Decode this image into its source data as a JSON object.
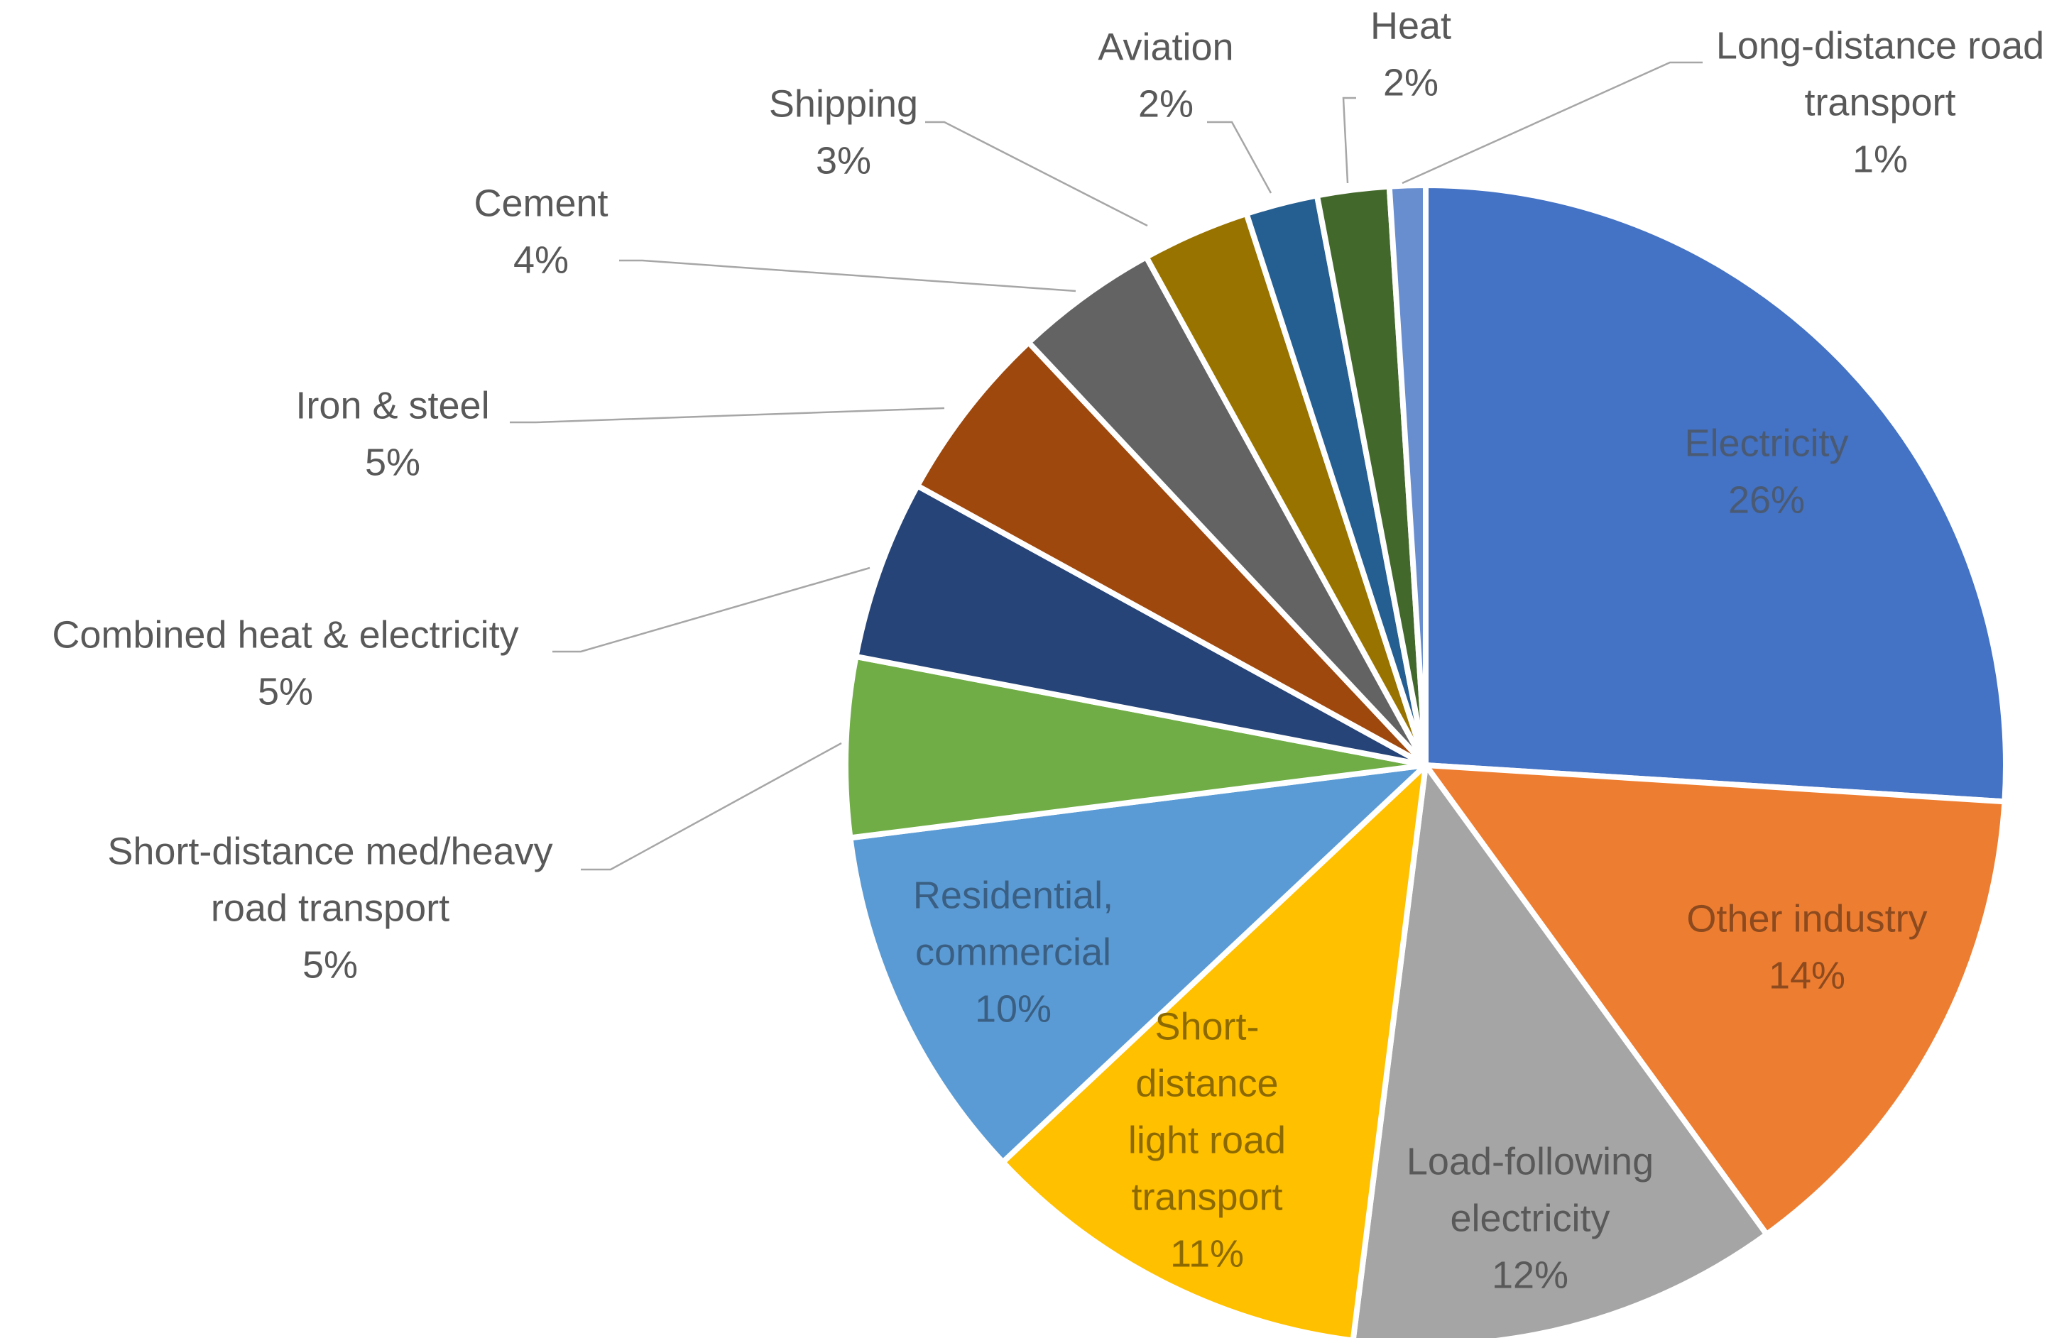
{
  "chart_data": {
    "type": "pie",
    "title": "",
    "slices": [
      {
        "name": "Electricity",
        "value": 26,
        "label": "26%",
        "color": "#4472C4",
        "text_color": "#4A5A73"
      },
      {
        "name": "Other industry",
        "value": 14,
        "label": "14%",
        "color": "#ED7D31",
        "text_color": "#8C4A1E"
      },
      {
        "name": "Load-following electricity",
        "value": 12,
        "label": "12%",
        "color": "#A5A5A5",
        "text_color": "#595959"
      },
      {
        "name": "Short-distance light road transport",
        "value": 11,
        "label": "11%",
        "color": "#FFC000",
        "text_color": "#8C6A00"
      },
      {
        "name": "Residential, commercial",
        "value": 10,
        "label": "10%",
        "color": "#5B9BD5",
        "text_color": "#3A5F82"
      },
      {
        "name": "Short-distance med/heavy road transport",
        "value": 5,
        "label": "5%",
        "color": "#70AD47",
        "text_color": "#595959"
      },
      {
        "name": "Combined heat & electricity",
        "value": 5,
        "label": "5%",
        "color": "#264478",
        "text_color": "#595959"
      },
      {
        "name": "Iron & steel",
        "value": 5,
        "label": "5%",
        "color": "#9E480E",
        "text_color": "#595959"
      },
      {
        "name": "Cement",
        "value": 4,
        "label": "4%",
        "color": "#636363",
        "text_color": "#595959"
      },
      {
        "name": "Shipping",
        "value": 3,
        "label": "3%",
        "color": "#997300",
        "text_color": "#595959"
      },
      {
        "name": "Aviation",
        "value": 2,
        "label": "2%",
        "color": "#255E91",
        "text_color": "#595959"
      },
      {
        "name": "Heat",
        "value": 2,
        "label": "2%",
        "color": "#43682B",
        "text_color": "#595959"
      },
      {
        "name": "Long-distance road transport",
        "value": 1,
        "label": "1%",
        "color": "#698ED0",
        "text_color": "#595959"
      }
    ]
  }
}
